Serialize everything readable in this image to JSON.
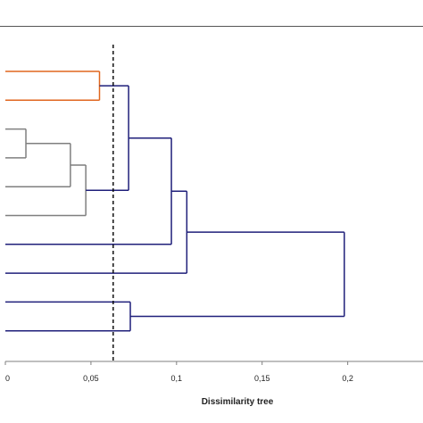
{
  "chart_data": {
    "type": "dendrogram",
    "title": "",
    "xlabel": "Dissimilarity tree",
    "ylabel": "",
    "xlim": [
      0,
      0.22
    ],
    "xticks": [
      {
        "value": 0,
        "label": "0"
      },
      {
        "value": 0.05,
        "label": "0,05"
      },
      {
        "value": 0.1,
        "label": "0,1"
      },
      {
        "value": 0.15,
        "label": "0,15"
      },
      {
        "value": 0.2,
        "label": "0,2"
      }
    ],
    "leaf_count": 10,
    "truncation_line": {
      "value": 0.063,
      "style": "dashed",
      "color": "#000000"
    },
    "colors": {
      "cluster_1": "#E0661E",
      "cluster_2": "#7F7F7F",
      "cluster_3": "#1F1F7A",
      "axis": "#7F7F7F",
      "frame": "#555555"
    },
    "merges": [
      {
        "id": "A",
        "height": 0.055,
        "children": [
          "L1",
          "L2"
        ],
        "color": "cluster_1"
      },
      {
        "id": "B",
        "height": 0.012,
        "children": [
          "L3",
          "L4"
        ],
        "color": "cluster_2"
      },
      {
        "id": "C",
        "height": 0.038,
        "children": [
          "B",
          "L5"
        ],
        "color": "cluster_2"
      },
      {
        "id": "D",
        "height": 0.047,
        "children": [
          "C",
          "L6"
        ],
        "color": "cluster_2"
      },
      {
        "id": "E",
        "height": 0.072,
        "children": [
          "A",
          "D"
        ],
        "color": "cluster_3"
      },
      {
        "id": "F",
        "height": 0.097,
        "children": [
          "E",
          "L7"
        ],
        "color": "cluster_3"
      },
      {
        "id": "G",
        "height": 0.106,
        "children": [
          "F",
          "L8"
        ],
        "color": "cluster_3"
      },
      {
        "id": "H",
        "height": 0.073,
        "children": [
          "L9",
          "L10"
        ],
        "color": "cluster_3"
      },
      {
        "id": "I",
        "height": 0.198,
        "children": [
          "G",
          "H"
        ],
        "color": "cluster_3"
      }
    ]
  }
}
